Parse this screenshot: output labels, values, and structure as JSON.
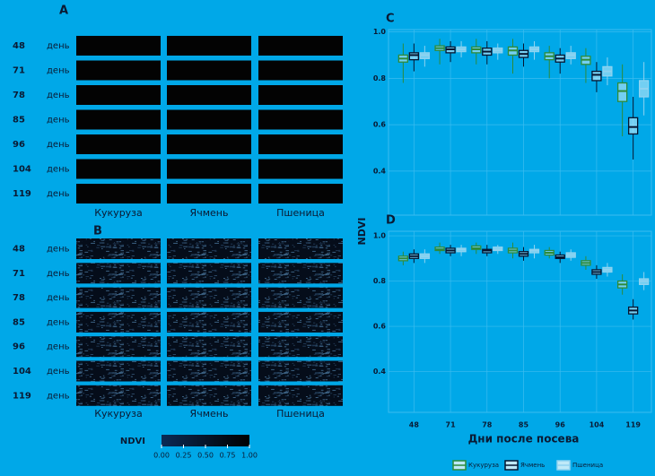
{
  "panel_a": {
    "label": "A",
    "rows": [
      "48",
      "71",
      "78",
      "85",
      "96",
      "104",
      "119"
    ],
    "row_unit": "день",
    "columns": [
      "Кукуруза",
      "Ячмень",
      "Пшеница"
    ]
  },
  "panel_b": {
    "label": "B",
    "rows": [
      "48",
      "71",
      "78",
      "85",
      "96",
      "104",
      "119"
    ],
    "row_unit": "день",
    "columns": [
      "Кукуруза",
      "Ячмень",
      "Пшеница"
    ]
  },
  "colorbar": {
    "title": "NDVI",
    "ticks": [
      {
        "value": 0,
        "label": "0.00"
      },
      {
        "value": 0.25,
        "label": "0.25"
      },
      {
        "value": 0.5,
        "label": "0.50"
      },
      {
        "value": 0.75,
        "label": "0.75"
      },
      {
        "value": 1,
        "label": "1.00"
      }
    ],
    "range": [
      0,
      1
    ]
  },
  "chart_data": [
    {
      "type": "box",
      "title": "C",
      "ylabel": "NDVI",
      "categories": [
        null,
        null,
        null,
        null,
        null,
        null,
        null
      ],
      "ylim": [
        0.21,
        1.01
      ],
      "yticks": [
        0.4,
        0.6,
        0.8,
        {
          "value": 1,
          "label": "1.0"
        }
      ],
      "grid": true,
      "series": [
        {
          "color": "#2e8b3a",
          "q1": [
            0.87,
            0.92,
            0.91,
            0.9,
            0.88,
            0.86,
            0.7
          ],
          "median": [
            0.885,
            0.93,
            0.925,
            0.92,
            0.895,
            0.88,
            0.745
          ],
          "q3": [
            0.9,
            0.94,
            0.935,
            0.935,
            0.91,
            0.895,
            0.78
          ],
          "whislo": [
            0.78,
            0.86,
            0.86,
            0.82,
            0.8,
            0.78,
            0.55
          ],
          "whishi": [
            0.95,
            0.97,
            0.97,
            0.97,
            0.94,
            0.93,
            0.86
          ]
        },
        {
          "color": "#061530",
          "q1": [
            0.88,
            0.91,
            0.9,
            0.89,
            0.87,
            0.79,
            0.56
          ],
          "median": [
            0.9,
            0.925,
            0.915,
            0.905,
            0.885,
            0.815,
            0.59
          ],
          "q3": [
            0.91,
            0.935,
            0.93,
            0.92,
            0.9,
            0.83,
            0.63
          ],
          "whislo": [
            0.83,
            0.87,
            0.86,
            0.85,
            0.82,
            0.74,
            0.45
          ],
          "whishi": [
            0.95,
            0.96,
            0.96,
            0.95,
            0.93,
            0.87,
            0.72
          ]
        },
        {
          "color": "#8fd3f0",
          "q1": [
            0.885,
            0.915,
            0.91,
            0.915,
            0.885,
            0.81,
            0.72
          ],
          "median": [
            0.9,
            0.925,
            0.92,
            0.925,
            0.9,
            0.83,
            0.755
          ],
          "q3": [
            0.91,
            0.935,
            0.93,
            0.935,
            0.91,
            0.85,
            0.79
          ],
          "whislo": [
            0.85,
            0.89,
            0.88,
            0.88,
            0.86,
            0.77,
            0.64
          ],
          "whishi": [
            0.94,
            0.96,
            0.95,
            0.96,
            0.94,
            0.89,
            0.87
          ]
        }
      ]
    },
    {
      "type": "box",
      "title": "D",
      "xlabel": "Дни после посева",
      "categories": [
        "48",
        "71",
        "78",
        "85",
        "96",
        "104",
        "119"
      ],
      "ylim": [
        0.22,
        1.02
      ],
      "yticks": [
        0.4,
        0.6,
        0.8,
        {
          "value": 1,
          "label": "1.0"
        }
      ],
      "grid": true,
      "legend": "bottom",
      "series": [
        {
          "name": "Кукуруза",
          "color": "#2e8b3a",
          "q1": [
            0.89,
            0.935,
            0.94,
            0.925,
            0.915,
            0.87,
            0.77
          ],
          "median": [
            0.9,
            0.94,
            0.945,
            0.935,
            0.925,
            0.88,
            0.785
          ],
          "q3": [
            0.91,
            0.95,
            0.955,
            0.945,
            0.935,
            0.89,
            0.8
          ],
          "whislo": [
            0.87,
            0.92,
            0.92,
            0.9,
            0.9,
            0.85,
            0.74
          ],
          "whishi": [
            0.93,
            0.97,
            0.97,
            0.97,
            0.95,
            0.91,
            0.83
          ]
        },
        {
          "name": "Ячмень",
          "color": "#061530",
          "q1": [
            0.9,
            0.925,
            0.925,
            0.91,
            0.9,
            0.83,
            0.655
          ],
          "median": [
            0.91,
            0.935,
            0.935,
            0.92,
            0.905,
            0.84,
            0.67
          ],
          "q3": [
            0.92,
            0.945,
            0.94,
            0.93,
            0.915,
            0.85,
            0.685
          ],
          "whislo": [
            0.88,
            0.91,
            0.91,
            0.89,
            0.88,
            0.81,
            0.63
          ],
          "whishi": [
            0.94,
            0.96,
            0.96,
            0.95,
            0.93,
            0.87,
            0.72
          ]
        },
        {
          "name": "Пшеница",
          "color": "#8fd3f0",
          "q1": [
            0.9,
            0.93,
            0.935,
            0.925,
            0.905,
            0.84,
            0.785
          ],
          "median": [
            0.91,
            0.94,
            0.94,
            0.935,
            0.915,
            0.85,
            0.8
          ],
          "q3": [
            0.92,
            0.945,
            0.95,
            0.94,
            0.925,
            0.86,
            0.81
          ],
          "whislo": [
            0.88,
            0.91,
            0.92,
            0.9,
            0.89,
            0.82,
            0.76
          ],
          "whishi": [
            0.94,
            0.96,
            0.96,
            0.96,
            0.94,
            0.88,
            0.84
          ]
        }
      ]
    }
  ]
}
